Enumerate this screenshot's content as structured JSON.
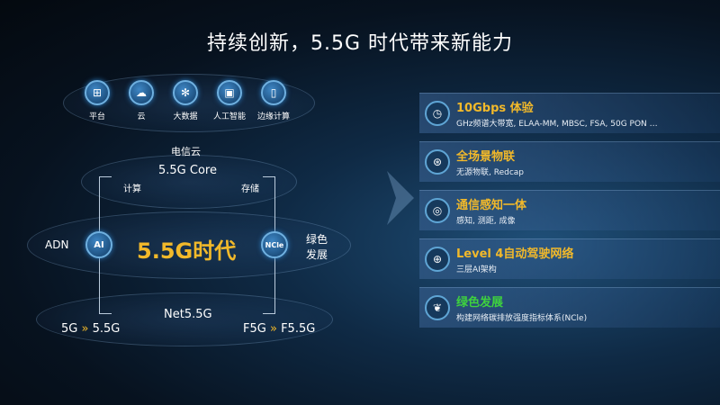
{
  "title": "持续创新，5.5G 时代带来新能力",
  "top_icons": [
    {
      "label": "平台",
      "icon": "platform-icon"
    },
    {
      "label": "云",
      "icon": "cloud-icon"
    },
    {
      "label": "大数据",
      "icon": "big-data-icon"
    },
    {
      "label": "人工智能",
      "icon": "ai-chip-icon"
    },
    {
      "label": "边缘计算",
      "icon": "edge-computing-icon"
    }
  ],
  "diagram": {
    "telecom_cloud": "电信云",
    "core": "5.5G Core",
    "compute": "计算",
    "storage": "存储",
    "center": "5.5G时代",
    "ai": "AI",
    "ncle": "NCle",
    "adn": "ADN",
    "green_line1": "绿色",
    "green_line2": "发展",
    "net": "Net5.5G",
    "left_from": "5G",
    "left_to": "5.5G",
    "right_from": "F5G",
    "right_to": "F5.5G",
    "arrow": "»"
  },
  "cards": [
    {
      "title": "10Gbps 体验",
      "subtitle": "GHz频谱大带宽, ELAA-MM, MBSC, FSA, 50G PON …",
      "icon": "speed-icon",
      "color": "#f2b92a"
    },
    {
      "title": "全场景物联",
      "subtitle": "无源物联, Redcap",
      "icon": "iot-icon",
      "color": "#f2b92a"
    },
    {
      "title": "通信感知一体",
      "subtitle": "感知, 测距, 成像",
      "icon": "sensing-icon",
      "color": "#f2b92a"
    },
    {
      "title": "Level 4自动驾驶网络",
      "subtitle": "三层AI架构",
      "icon": "network-globe-icon",
      "color": "#f2b92a"
    },
    {
      "title": "绿色发展",
      "subtitle": "构建网络碳排放强度指标体系(NCle)",
      "icon": "leaf-icon",
      "color": "#3ed23e"
    }
  ],
  "colors": {
    "accent": "#f2b92a",
    "green": "#3ed23e"
  }
}
